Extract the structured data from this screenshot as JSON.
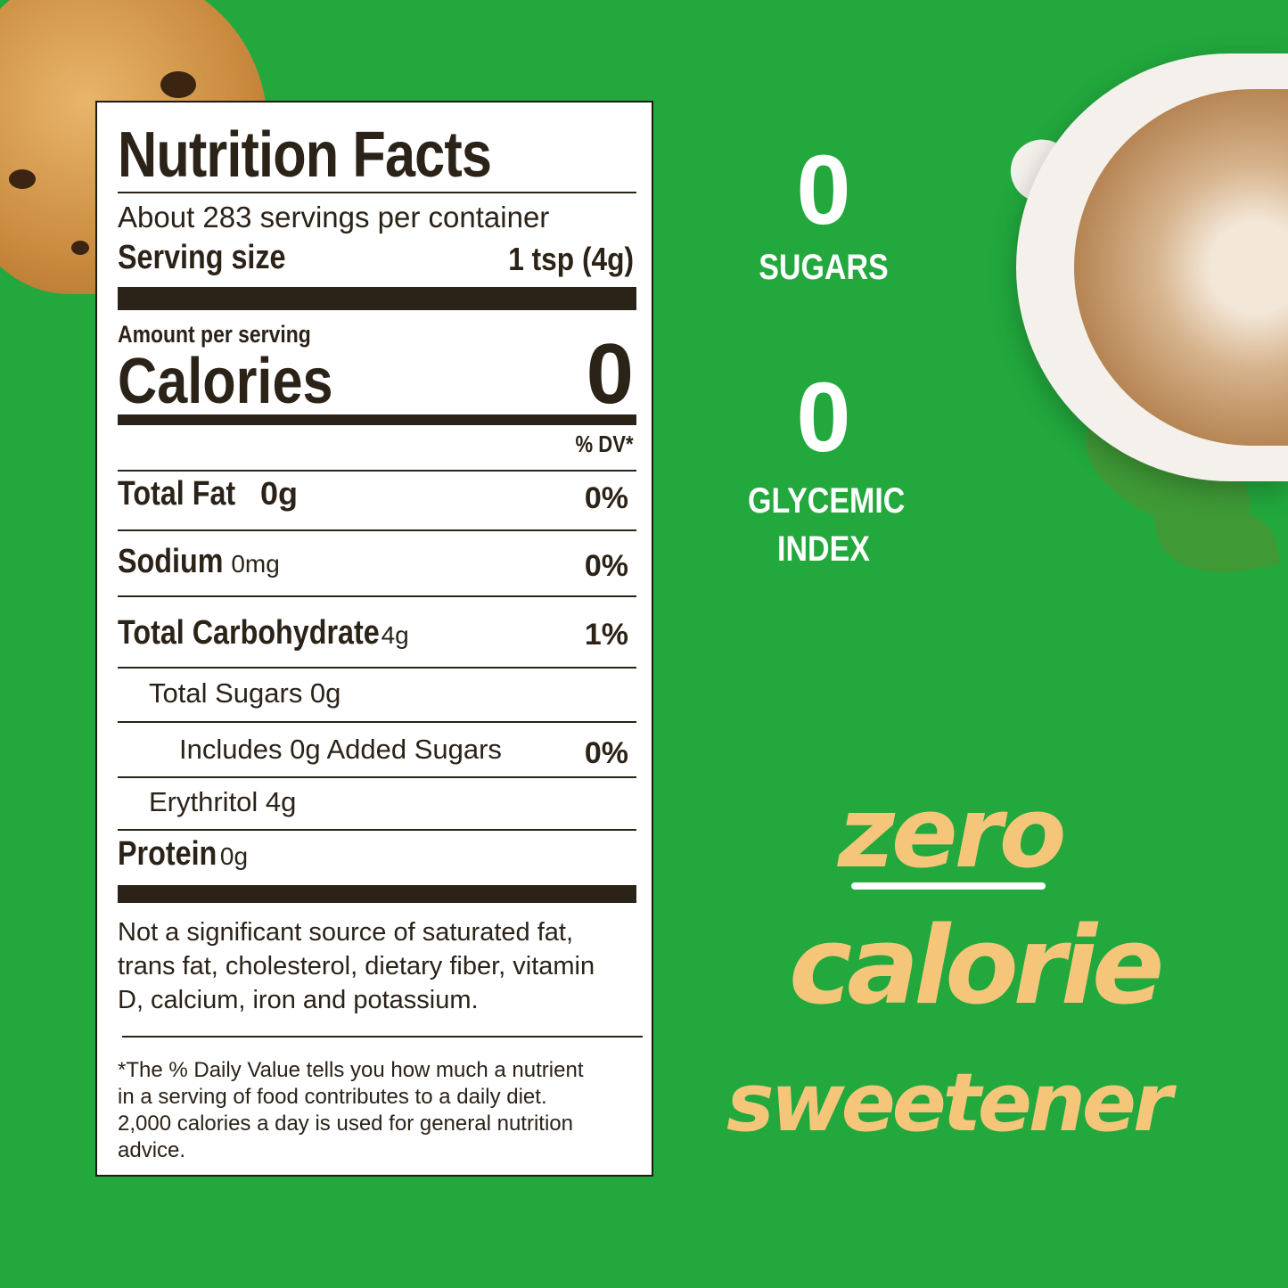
{
  "colors": {
    "background": "#22a83d",
    "label_text": "#2b2218",
    "accent_text": "#f5c67a",
    "stat_text": "#ffffff"
  },
  "nutrition": {
    "title": "Nutrition Facts",
    "servings": "About 283 servings per container",
    "serving_size_label": "Serving size",
    "serving_size_value": "1 tsp (4g)",
    "amount_per_serving": "Amount per serving",
    "calories_label": "Calories",
    "calories_value": "0",
    "dv_header": "% DV*",
    "rows": [
      {
        "name": "Total Fat",
        "amount": "0g",
        "dv": "0%"
      },
      {
        "name": "Sodium",
        "amount": "0mg",
        "dv": "0%"
      },
      {
        "name": "Total Carbohydrate",
        "amount": "4g",
        "dv": "1%"
      },
      {
        "name": "Total Sugars 0g",
        "amount": "",
        "dv": ""
      },
      {
        "name": "Includes 0g Added Sugars",
        "amount": "",
        "dv": "0%"
      },
      {
        "name": "Erythritol 4g",
        "amount": "",
        "dv": ""
      },
      {
        "name": "Protein",
        "amount": "0g",
        "dv": ""
      }
    ],
    "not_significant": "Not a significant source of saturated fat, trans fat, cholesterol, dietary fiber, vitamin D, calcium, iron and potassium.",
    "footnote": "*The % Daily Value tells you how much a nutrient in a serving of food contributes to a daily diet. 2,000 calories a day is used for general nutrition advice."
  },
  "stats": [
    {
      "value": "0",
      "label": "SUGARS"
    },
    {
      "value": "0",
      "label": "GLYCEMIC INDEX"
    }
  ],
  "tagline": {
    "line1": "zero",
    "line2": "calorie",
    "line3": "sweetener"
  }
}
